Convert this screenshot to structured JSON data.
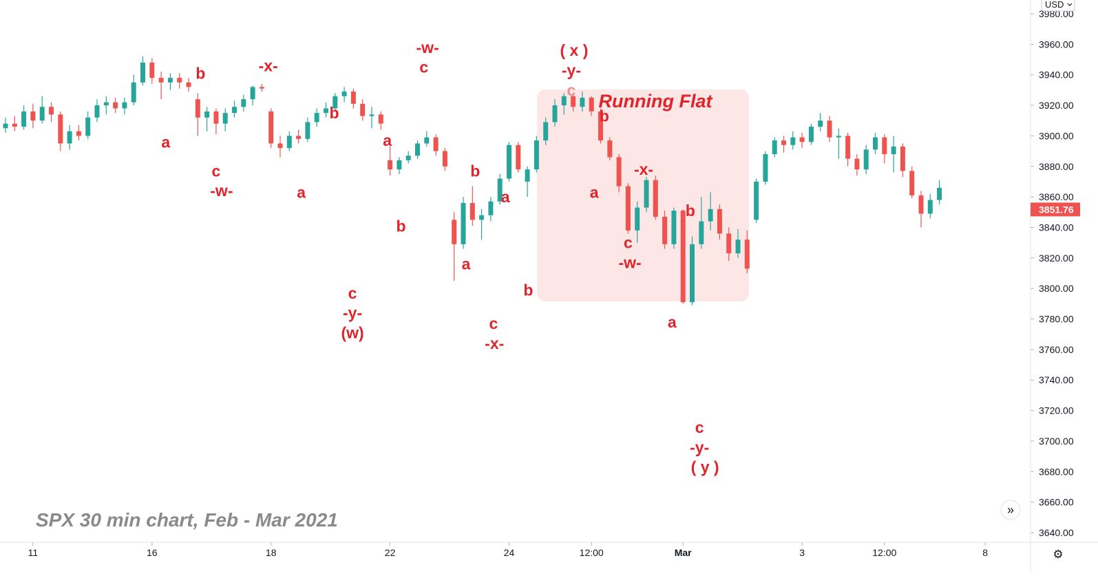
{
  "chart_data": {
    "type": "candlestick",
    "symbol": "SPX",
    "caption": "SPX 30 min chart, Feb - Mar 2021",
    "currency": "USD",
    "y_axis_ticks": [
      "3980.00",
      "3960.00",
      "3940.00",
      "3920.00",
      "3900.00",
      "3880.00",
      "3860.00",
      "3840.00",
      "3820.00",
      "3800.00",
      "3780.00",
      "3760.00",
      "3740.00",
      "3720.00",
      "3700.00",
      "3680.00",
      "3660.00",
      "3640.00"
    ],
    "y_axis_tick_values": [
      3980,
      3960,
      3940,
      3920,
      3900,
      3880,
      3860,
      3840,
      3820,
      3800,
      3780,
      3760,
      3740,
      3720,
      3700,
      3680,
      3660,
      3640
    ],
    "ylim": [
      3636,
      3986
    ],
    "x_axis_ticks": [
      {
        "label": "11",
        "bar": 3,
        "bold": false
      },
      {
        "label": "16",
        "bar": 16,
        "bold": false
      },
      {
        "label": "18",
        "bar": 29,
        "bold": false
      },
      {
        "label": "22",
        "bar": 42,
        "bold": false
      },
      {
        "label": "24",
        "bar": 55,
        "bold": false
      },
      {
        "label": "12:00",
        "bar": 64,
        "bold": false
      },
      {
        "label": "Mar",
        "bar": 74,
        "bold": true
      },
      {
        "label": "3",
        "bar": 87,
        "bold": false
      },
      {
        "label": "12:00",
        "bar": 96,
        "bold": false
      },
      {
        "label": "8",
        "bar": 107,
        "bold": false
      }
    ],
    "last_price": "3851.76",
    "last_price_value": 3851.76,
    "colors": {
      "up": "#26a69a",
      "down": "#ef5350",
      "annotation": "#e0242b",
      "box_fill": "#fde6e6"
    },
    "grid": false,
    "ohlc": [
      {
        "o": 3905,
        "h": 3912,
        "l": 3902,
        "c": 3908
      },
      {
        "o": 3908,
        "h": 3913,
        "l": 3903,
        "c": 3906
      },
      {
        "o": 3906,
        "h": 3920,
        "l": 3904,
        "c": 3916
      },
      {
        "o": 3916,
        "h": 3921,
        "l": 3905,
        "c": 3910
      },
      {
        "o": 3910,
        "h": 3926,
        "l": 3908,
        "c": 3919
      },
      {
        "o": 3919,
        "h": 3922,
        "l": 3909,
        "c": 3914
      },
      {
        "o": 3914,
        "h": 3916,
        "l": 3890,
        "c": 3895
      },
      {
        "o": 3895,
        "h": 3907,
        "l": 3891,
        "c": 3903
      },
      {
        "o": 3903,
        "h": 3907,
        "l": 3897,
        "c": 3900
      },
      {
        "o": 3900,
        "h": 3916,
        "l": 3898,
        "c": 3912
      },
      {
        "o": 3912,
        "h": 3924,
        "l": 3909,
        "c": 3920
      },
      {
        "o": 3920,
        "h": 3926,
        "l": 3914,
        "c": 3922
      },
      {
        "o": 3922,
        "h": 3925,
        "l": 3915,
        "c": 3918
      },
      {
        "o": 3918,
        "h": 3925,
        "l": 3914,
        "c": 3922
      },
      {
        "o": 3922,
        "h": 3940,
        "l": 3920,
        "c": 3935
      },
      {
        "o": 3935,
        "h": 3952,
        "l": 3933,
        "c": 3948
      },
      {
        "o": 3948,
        "h": 3951,
        "l": 3934,
        "c": 3938
      },
      {
        "o": 3938,
        "h": 3942,
        "l": 3924,
        "c": 3935
      },
      {
        "o": 3935,
        "h": 3941,
        "l": 3930,
        "c": 3938
      },
      {
        "o": 3938,
        "h": 3941,
        "l": 3931,
        "c": 3935
      },
      {
        "o": 3935,
        "h": 3938,
        "l": 3929,
        "c": 3932
      },
      {
        "o": 3924,
        "h": 3928,
        "l": 3900,
        "c": 3912
      },
      {
        "o": 3912,
        "h": 3919,
        "l": 3903,
        "c": 3916
      },
      {
        "o": 3916,
        "h": 3918,
        "l": 3901,
        "c": 3908
      },
      {
        "o": 3908,
        "h": 3918,
        "l": 3903,
        "c": 3915
      },
      {
        "o": 3915,
        "h": 3923,
        "l": 3912,
        "c": 3919
      },
      {
        "o": 3919,
        "h": 3927,
        "l": 3916,
        "c": 3924
      },
      {
        "o": 3924,
        "h": 3933,
        "l": 3920,
        "c": 3932
      },
      {
        "o": 3932,
        "h": 3934,
        "l": 3929,
        "c": 3931
      },
      {
        "o": 3916,
        "h": 3918,
        "l": 3892,
        "c": 3895
      },
      {
        "o": 3895,
        "h": 3900,
        "l": 3886,
        "c": 3892
      },
      {
        "o": 3892,
        "h": 3903,
        "l": 3890,
        "c": 3900
      },
      {
        "o": 3900,
        "h": 3904,
        "l": 3895,
        "c": 3898
      },
      {
        "o": 3898,
        "h": 3912,
        "l": 3896,
        "c": 3909
      },
      {
        "o": 3909,
        "h": 3918,
        "l": 3906,
        "c": 3915
      },
      {
        "o": 3915,
        "h": 3922,
        "l": 3912,
        "c": 3918
      },
      {
        "o": 3918,
        "h": 3928,
        "l": 3916,
        "c": 3926
      },
      {
        "o": 3926,
        "h": 3932,
        "l": 3922,
        "c": 3929
      },
      {
        "o": 3929,
        "h": 3931,
        "l": 3918,
        "c": 3921
      },
      {
        "o": 3921,
        "h": 3924,
        "l": 3910,
        "c": 3913
      },
      {
        "o": 3913,
        "h": 3919,
        "l": 3905,
        "c": 3914
      },
      {
        "o": 3914,
        "h": 3916,
        "l": 3904,
        "c": 3908
      },
      {
        "o": 3884,
        "h": 3893,
        "l": 3874,
        "c": 3878
      },
      {
        "o": 3878,
        "h": 3886,
        "l": 3875,
        "c": 3884
      },
      {
        "o": 3884,
        "h": 3890,
        "l": 3882,
        "c": 3887
      },
      {
        "o": 3887,
        "h": 3897,
        "l": 3885,
        "c": 3895
      },
      {
        "o": 3895,
        "h": 3903,
        "l": 3893,
        "c": 3899
      },
      {
        "o": 3899,
        "h": 3901,
        "l": 3887,
        "c": 3890
      },
      {
        "o": 3890,
        "h": 3892,
        "l": 3877,
        "c": 3880
      },
      {
        "o": 3845,
        "h": 3850,
        "l": 3805,
        "c": 3829
      },
      {
        "o": 3829,
        "h": 3860,
        "l": 3826,
        "c": 3856
      },
      {
        "o": 3856,
        "h": 3867,
        "l": 3841,
        "c": 3845
      },
      {
        "o": 3845,
        "h": 3852,
        "l": 3832,
        "c": 3848
      },
      {
        "o": 3848,
        "h": 3860,
        "l": 3844,
        "c": 3857
      },
      {
        "o": 3857,
        "h": 3875,
        "l": 3855,
        "c": 3872
      },
      {
        "o": 3872,
        "h": 3896,
        "l": 3870,
        "c": 3894
      },
      {
        "o": 3894,
        "h": 3896,
        "l": 3876,
        "c": 3878
      },
      {
        "o": 3870,
        "h": 3880,
        "l": 3860,
        "c": 3878
      },
      {
        "o": 3878,
        "h": 3900,
        "l": 3876,
        "c": 3897
      },
      {
        "o": 3897,
        "h": 3912,
        "l": 3894,
        "c": 3909
      },
      {
        "o": 3909,
        "h": 3924,
        "l": 3906,
        "c": 3920
      },
      {
        "o": 3920,
        "h": 3928,
        "l": 3914,
        "c": 3926
      },
      {
        "o": 3926,
        "h": 3928,
        "l": 3916,
        "c": 3919
      },
      {
        "o": 3919,
        "h": 3929,
        "l": 3916,
        "c": 3925
      },
      {
        "o": 3925,
        "h": 3926,
        "l": 3913,
        "c": 3916
      },
      {
        "o": 3916,
        "h": 3918,
        "l": 3895,
        "c": 3897
      },
      {
        "o": 3897,
        "h": 3899,
        "l": 3884,
        "c": 3886
      },
      {
        "o": 3886,
        "h": 3888,
        "l": 3863,
        "c": 3867
      },
      {
        "o": 3867,
        "h": 3869,
        "l": 3836,
        "c": 3838
      },
      {
        "o": 3838,
        "h": 3857,
        "l": 3830,
        "c": 3853
      },
      {
        "o": 3853,
        "h": 3873,
        "l": 3850,
        "c": 3871
      },
      {
        "o": 3871,
        "h": 3874,
        "l": 3845,
        "c": 3847
      },
      {
        "o": 3847,
        "h": 3851,
        "l": 3826,
        "c": 3829
      },
      {
        "o": 3829,
        "h": 3853,
        "l": 3826,
        "c": 3851
      },
      {
        "o": 3851,
        "h": 3852,
        "l": 3790,
        "c": 3791
      },
      {
        "o": 3791,
        "h": 3834,
        "l": 3789,
        "c": 3829
      },
      {
        "o": 3829,
        "h": 3860,
        "l": 3826,
        "c": 3844
      },
      {
        "o": 3844,
        "h": 3863,
        "l": 3838,
        "c": 3852
      },
      {
        "o": 3852,
        "h": 3855,
        "l": 3832,
        "c": 3836
      },
      {
        "o": 3836,
        "h": 3840,
        "l": 3818,
        "c": 3823
      },
      {
        "o": 3823,
        "h": 3839,
        "l": 3820,
        "c": 3832
      },
      {
        "o": 3832,
        "h": 3838,
        "l": 3810,
        "c": 3813
      },
      {
        "o": 3845,
        "h": 3872,
        "l": 3843,
        "c": 3870
      },
      {
        "o": 3870,
        "h": 3890,
        "l": 3868,
        "c": 3888
      },
      {
        "o": 3888,
        "h": 3899,
        "l": 3886,
        "c": 3897
      },
      {
        "o": 3897,
        "h": 3900,
        "l": 3889,
        "c": 3894
      },
      {
        "o": 3894,
        "h": 3903,
        "l": 3891,
        "c": 3899
      },
      {
        "o": 3899,
        "h": 3902,
        "l": 3892,
        "c": 3896
      },
      {
        "o": 3896,
        "h": 3908,
        "l": 3894,
        "c": 3906
      },
      {
        "o": 3906,
        "h": 3915,
        "l": 3903,
        "c": 3910
      },
      {
        "o": 3910,
        "h": 3913,
        "l": 3896,
        "c": 3899
      },
      {
        "o": 3899,
        "h": 3905,
        "l": 3885,
        "c": 3900
      },
      {
        "o": 3900,
        "h": 3902,
        "l": 3880,
        "c": 3885
      },
      {
        "o": 3885,
        "h": 3888,
        "l": 3874,
        "c": 3878
      },
      {
        "o": 3878,
        "h": 3894,
        "l": 3875,
        "c": 3891
      },
      {
        "o": 3891,
        "h": 3902,
        "l": 3888,
        "c": 3899
      },
      {
        "o": 3899,
        "h": 3901,
        "l": 3882,
        "c": 3888
      },
      {
        "o": 3888,
        "h": 3900,
        "l": 3876,
        "c": 3893
      },
      {
        "o": 3893,
        "h": 3895,
        "l": 3873,
        "c": 3877
      },
      {
        "o": 3877,
        "h": 3880,
        "l": 3859,
        "c": 3861
      },
      {
        "o": 3861,
        "h": 3864,
        "l": 3840,
        "c": 3849
      },
      {
        "o": 3849,
        "h": 3862,
        "l": 3846,
        "c": 3858
      },
      {
        "o": 3858,
        "h": 3871,
        "l": 3855,
        "c": 3866
      }
    ]
  },
  "annotations": {
    "box_title": "Running Flat",
    "labels": [
      {
        "id": "a1",
        "text": "a",
        "bar": 17.5,
        "price": 3896,
        "faint": false
      },
      {
        "id": "b1",
        "text": "b",
        "bar": 21.3,
        "price": 3941,
        "faint": false
      },
      {
        "id": "c1",
        "text": "c",
        "bar": 23.0,
        "price": 3877,
        "faint": false
      },
      {
        "id": "w1",
        "text": "-w-",
        "bar": 23.6,
        "price": 3864,
        "faint": false
      },
      {
        "id": "x1",
        "text": "-x-",
        "bar": 28.7,
        "price": 3946,
        "faint": false
      },
      {
        "id": "a2",
        "text": "a",
        "bar": 32.3,
        "price": 3863,
        "faint": false
      },
      {
        "id": "b2",
        "text": "b",
        "bar": 35.9,
        "price": 3915,
        "faint": false
      },
      {
        "id": "a3",
        "text": "a",
        "bar": 41.7,
        "price": 3897,
        "faint": false
      },
      {
        "id": "b3",
        "text": "b",
        "bar": 43.2,
        "price": 3841,
        "faint": false
      },
      {
        "id": "c2",
        "text": "c",
        "bar": 37.9,
        "price": 3797,
        "faint": false
      },
      {
        "id": "y1",
        "text": "-y-",
        "bar": 37.9,
        "price": 3784,
        "faint": false
      },
      {
        "id": "w2",
        "text": "(w)",
        "bar": 37.9,
        "price": 3771,
        "faint": false
      },
      {
        "id": "w3",
        "text": "-w-",
        "bar": 46.1,
        "price": 3958,
        "faint": false
      },
      {
        "id": "c3",
        "text": "c",
        "bar": 45.7,
        "price": 3945,
        "faint": false
      },
      {
        "id": "b4",
        "text": "b",
        "bar": 51.3,
        "price": 3877,
        "faint": false
      },
      {
        "id": "a4",
        "text": "a",
        "bar": 50.3,
        "price": 3816,
        "faint": false
      },
      {
        "id": "a5",
        "text": "a",
        "bar": 54.6,
        "price": 3860,
        "faint": false
      },
      {
        "id": "b5",
        "text": "b",
        "bar": 57.1,
        "price": 3799,
        "faint": false
      },
      {
        "id": "c4",
        "text": "c",
        "bar": 53.3,
        "price": 3777,
        "faint": false
      },
      {
        "id": "x2",
        "text": "-x-",
        "bar": 53.4,
        "price": 3764,
        "faint": false
      },
      {
        "id": "x3",
        "text": "( x )",
        "bar": 62.1,
        "price": 3956,
        "faint": false
      },
      {
        "id": "y2",
        "text": "-y-",
        "bar": 61.8,
        "price": 3943,
        "faint": false
      },
      {
        "id": "c5",
        "text": "c",
        "bar": 61.8,
        "price": 3930,
        "faint": true
      },
      {
        "id": "b6",
        "text": "b",
        "bar": 65.4,
        "price": 3913,
        "faint": false
      },
      {
        "id": "a6",
        "text": "a",
        "bar": 64.3,
        "price": 3863,
        "faint": false
      },
      {
        "id": "x4",
        "text": "-x-",
        "bar": 69.7,
        "price": 3878,
        "faint": false
      },
      {
        "id": "c6",
        "text": "c",
        "bar": 68.0,
        "price": 3830,
        "faint": false
      },
      {
        "id": "w4",
        "text": "-w-",
        "bar": 68.2,
        "price": 3817,
        "faint": false
      },
      {
        "id": "b7",
        "text": "b",
        "bar": 74.8,
        "price": 3851,
        "faint": false
      },
      {
        "id": "a7",
        "text": "a",
        "bar": 72.8,
        "price": 3778,
        "faint": false
      },
      {
        "id": "c7",
        "text": "c",
        "bar": 75.8,
        "price": 3709,
        "faint": false
      },
      {
        "id": "y3",
        "text": "-y-",
        "bar": 75.8,
        "price": 3696,
        "faint": false
      },
      {
        "id": "y4",
        "text": "( y )",
        "bar": 76.4,
        "price": 3683,
        "faint": false
      }
    ]
  },
  "icons": {
    "scroll_right": "double-chevron-right-icon",
    "settings": "gear-icon"
  },
  "symbols": {
    "scroll_right_glyph": "»",
    "settings_glyph": "⚙"
  }
}
